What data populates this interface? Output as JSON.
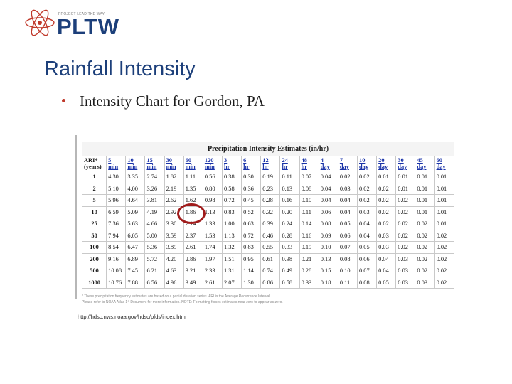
{
  "logo": {
    "tagline": "PROJECT LEAD THE WAY",
    "wordmark": "PLTW",
    "icon": "atom-icon"
  },
  "slide": {
    "title": "Rainfall Intensity",
    "bullet": "Intensity Chart for Gordon, PA"
  },
  "table": {
    "caption": "Precipitation Intensity Estimates (in/hr)",
    "headers": [
      "ARI* (years)",
      "5 min",
      "10 min",
      "15 min",
      "30 min",
      "60 min",
      "120 min",
      "3 hr",
      "6 hr",
      "12 hr",
      "24 hr",
      "48 hr",
      "4 day",
      "7 day",
      "10 day",
      "20 day",
      "30 day",
      "45 day",
      "60 day"
    ],
    "rows": [
      [
        "1",
        "4.30",
        "3.35",
        "2.74",
        "1.82",
        "1.11",
        "0.56",
        "0.38",
        "0.30",
        "0.19",
        "0.11",
        "0.07",
        "0.04",
        "0.02",
        "0.02",
        "0.01",
        "0.01",
        "0.01",
        "0.01"
      ],
      [
        "2",
        "5.10",
        "4.00",
        "3.26",
        "2.19",
        "1.35",
        "0.80",
        "0.58",
        "0.36",
        "0.23",
        "0.13",
        "0.08",
        "0.04",
        "0.03",
        "0.02",
        "0.02",
        "0.01",
        "0.01",
        "0.01"
      ],
      [
        "5",
        "5.96",
        "4.64",
        "3.81",
        "2.62",
        "1.62",
        "0.98",
        "0.72",
        "0.45",
        "0.28",
        "0.16",
        "0.10",
        "0.04",
        "0.04",
        "0.02",
        "0.02",
        "0.02",
        "0.01",
        "0.01"
      ],
      [
        "10",
        "6.59",
        "5.09",
        "4.19",
        "2.92",
        "1.86",
        "1.13",
        "0.83",
        "0.52",
        "0.32",
        "0.20",
        "0.11",
        "0.06",
        "0.04",
        "0.03",
        "0.02",
        "0.02",
        "0.01",
        "0.01"
      ],
      [
        "25",
        "7.36",
        "5.63",
        "4.66",
        "3.30",
        "2.14",
        "1.33",
        "1.00",
        "0.63",
        "0.39",
        "0.24",
        "0.14",
        "0.08",
        "0.05",
        "0.04",
        "0.02",
        "0.02",
        "0.02",
        "0.01"
      ],
      [
        "50",
        "7.94",
        "6.05",
        "5.00",
        "3.59",
        "2.37",
        "1.53",
        "1.13",
        "0.72",
        "0.46",
        "0.28",
        "0.16",
        "0.09",
        "0.06",
        "0.04",
        "0.03",
        "0.02",
        "0.02",
        "0.02"
      ],
      [
        "100",
        "8.54",
        "6.47",
        "5.36",
        "3.89",
        "2.61",
        "1.74",
        "1.32",
        "0.83",
        "0.55",
        "0.33",
        "0.19",
        "0.10",
        "0.07",
        "0.05",
        "0.03",
        "0.02",
        "0.02",
        "0.02"
      ],
      [
        "200",
        "9.16",
        "6.89",
        "5.72",
        "4.20",
        "2.86",
        "1.97",
        "1.51",
        "0.95",
        "0.61",
        "0.38",
        "0.21",
        "0.13",
        "0.08",
        "0.06",
        "0.04",
        "0.03",
        "0.02",
        "0.02"
      ],
      [
        "500",
        "10.08",
        "7.45",
        "6.21",
        "4.63",
        "3.21",
        "2.33",
        "1.31",
        "1.14",
        "0.74",
        "0.49",
        "0.28",
        "0.15",
        "0.10",
        "0.07",
        "0.04",
        "0.03",
        "0.02",
        "0.02"
      ],
      [
        "1000",
        "10.76",
        "7.88",
        "6.56",
        "4.96",
        "3.49",
        "2.61",
        "2.07",
        "1.30",
        "0.86",
        "0.58",
        "0.33",
        "0.18",
        "0.11",
        "0.08",
        "0.05",
        "0.03",
        "0.03",
        "0.02"
      ]
    ],
    "highlighted_row": "10",
    "highlighted_column": "60 min",
    "highlight_color": "#a01b1b"
  },
  "notes": [
    "* These precipitation frequency estimates are based on a partial duration series. ARI is the Average Recurrence Interval.",
    "Please refer to NOAA Atlas 14 Document for more information. NOTE: Formatting forces estimates near zero to appear as zero."
  ],
  "source_url": "http://hdsc.nws.noaa.gov/hdsc/pfds/index.html",
  "colors": {
    "title_blue": "#1c3f7a",
    "header_blue": "#1a33a8",
    "bullet_red": "#c0392b"
  }
}
